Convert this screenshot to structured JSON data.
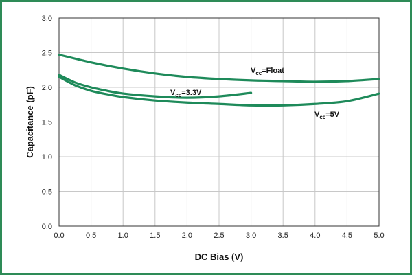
{
  "chart_data": {
    "type": "line",
    "xlabel": "DC Bias (V)",
    "ylabel": "Capacitance (pF)",
    "xlim": [
      0,
      5
    ],
    "ylim": [
      0,
      3
    ],
    "x_ticks": [
      "0.0",
      "0.5",
      "1.0",
      "1.5",
      "2.0",
      "2.5",
      "3.0",
      "3.5",
      "4.0",
      "4.5",
      "5.0"
    ],
    "y_ticks": [
      "0.0",
      "0.5",
      "1.0",
      "1.5",
      "2.0",
      "2.5",
      "3.0"
    ],
    "grid": true,
    "line_color": "#1e8a5a",
    "series": [
      {
        "label_main": "V",
        "label_sub": "cc",
        "label_rest": "=Float",
        "x": [
          0,
          0.5,
          1,
          1.5,
          2,
          2.5,
          3,
          3.5,
          4,
          4.5,
          5
        ],
        "y": [
          2.47,
          2.36,
          2.27,
          2.2,
          2.15,
          2.12,
          2.1,
          2.09,
          2.08,
          2.09,
          2.12
        ]
      },
      {
        "label_main": "V",
        "label_sub": "cc",
        "label_rest": "=3.3V",
        "x": [
          0,
          0.25,
          0.5,
          0.75,
          1,
          1.5,
          2,
          2.5,
          3
        ],
        "y": [
          2.18,
          2.07,
          2.0,
          1.95,
          1.91,
          1.87,
          1.85,
          1.87,
          1.92
        ]
      },
      {
        "label_main": "V",
        "label_sub": "cc",
        "label_rest": "=5V",
        "x": [
          0,
          0.25,
          0.5,
          0.75,
          1,
          1.5,
          2,
          2.5,
          3,
          3.5,
          4,
          4.5,
          5
        ],
        "y": [
          2.15,
          2.03,
          1.95,
          1.9,
          1.86,
          1.81,
          1.78,
          1.76,
          1.74,
          1.74,
          1.76,
          1.8,
          1.91
        ]
      }
    ]
  }
}
